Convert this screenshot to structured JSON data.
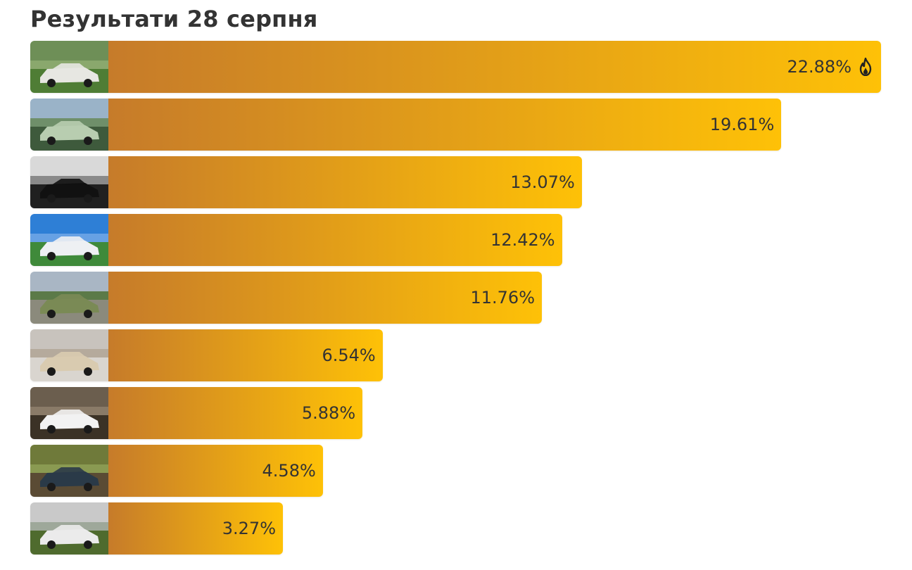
{
  "page": {
    "title": "Результати 28 серпня"
  },
  "colors": {
    "bar_start": "#c67b2a",
    "bar_end": "#fec107",
    "text": "#333333"
  },
  "chart_data": {
    "type": "bar",
    "orientation": "horizontal",
    "title": "Результати 28 серпня",
    "categories": [
      "car-photo-1",
      "car-photo-2",
      "car-photo-3",
      "car-photo-4",
      "car-photo-5",
      "car-photo-6",
      "car-photo-7",
      "car-photo-8",
      "car-photo-9"
    ],
    "values": [
      22.88,
      19.61,
      13.07,
      12.42,
      11.76,
      6.54,
      5.88,
      4.58,
      3.27
    ],
    "labels": [
      "22.88%",
      "19.61%",
      "13.07%",
      "12.42%",
      "11.76%",
      "6.54%",
      "5.88%",
      "4.58%",
      "3.27%"
    ],
    "unit": "%",
    "xlim": [
      0,
      22.88
    ],
    "leader_icon": "fire-icon",
    "grid": false,
    "legend": "none"
  }
}
